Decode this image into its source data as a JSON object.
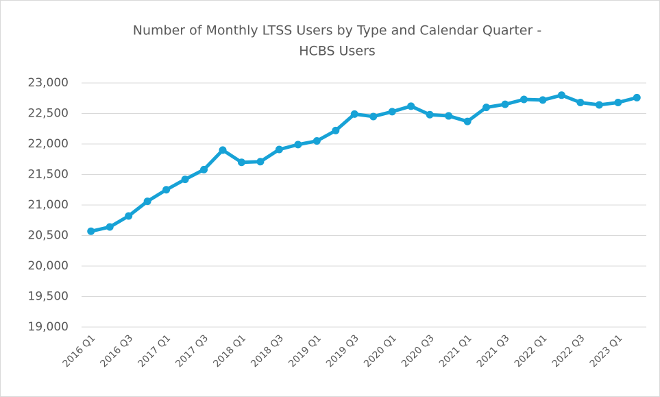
{
  "chart_data": {
    "type": "line",
    "title": [
      "Number of Monthly LTSS Users by Type and Calendar Quarter -",
      "HCBS Users"
    ],
    "categories": [
      "2016 Q1",
      null,
      "2016 Q3",
      null,
      "2017 Q1",
      null,
      "2017 Q3",
      null,
      "2018 Q1",
      null,
      "2018 Q3",
      null,
      "2019 Q1",
      null,
      "2019 Q3",
      null,
      "2020 Q1",
      null,
      "2020 Q3",
      null,
      "2021 Q1",
      null,
      "2021 Q3",
      null,
      "2022 Q1",
      null,
      "2022 Q3",
      null,
      "2023 Q1",
      null
    ],
    "series": [
      {
        "name": "HCBS Users",
        "color": "#17a2d6",
        "values": [
          20570,
          20640,
          20820,
          21060,
          21250,
          21420,
          21580,
          21900,
          21700,
          21710,
          21910,
          21990,
          22050,
          22220,
          22490,
          22450,
          22530,
          22620,
          22480,
          22460,
          22370,
          22600,
          22650,
          22730,
          22720,
          22800,
          22680,
          22640,
          22680,
          22760
        ]
      }
    ],
    "ylim": [
      19000,
      23000
    ],
    "yticks": [
      {
        "value": 19000,
        "label": "19,000"
      },
      {
        "value": 19500,
        "label": "19,500"
      },
      {
        "value": 20000,
        "label": "20,000"
      },
      {
        "value": 20500,
        "label": "20,500"
      },
      {
        "value": 21000,
        "label": "21,000"
      },
      {
        "value": 21500,
        "label": "21,500"
      },
      {
        "value": 22000,
        "label": "22,000"
      },
      {
        "value": 22500,
        "label": "22,500"
      },
      {
        "value": 23000,
        "label": "23,000"
      }
    ],
    "grid": true
  }
}
